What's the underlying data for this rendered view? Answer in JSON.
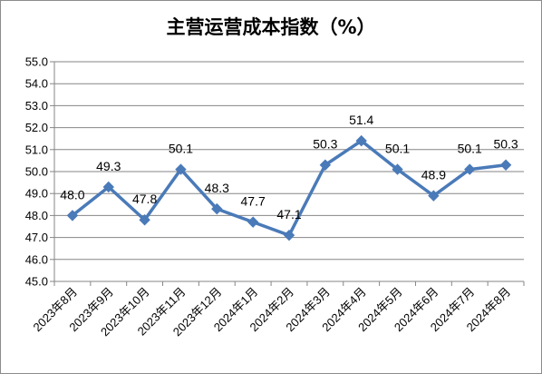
{
  "chart_data": {
    "type": "line",
    "title": "主营运营成本指数（%）",
    "categories": [
      "2023年8月",
      "2023年9月",
      "2023年10月",
      "2023年11月",
      "2023年12月",
      "2024年1月",
      "2024年2月",
      "2024年3月",
      "2024年4月",
      "2024年5月",
      "2024年6月",
      "2024年7月",
      "2024年8月"
    ],
    "series": [
      {
        "values": [
          48.0,
          49.3,
          47.8,
          50.1,
          48.3,
          47.7,
          47.1,
          50.3,
          51.4,
          50.1,
          48.9,
          50.1,
          50.3
        ]
      }
    ],
    "data_labels": [
      "48.0",
      "49.3",
      "47.8",
      "50.1",
      "48.3",
      "47.7",
      "47.1",
      "50.3",
      "51.4",
      "50.1",
      "48.9",
      "50.1",
      "50.3"
    ],
    "ylim": [
      45.0,
      55.0
    ],
    "ytick_labels": [
      "45.0",
      "46.0",
      "47.0",
      "48.0",
      "49.0",
      "50.0",
      "51.0",
      "52.0",
      "53.0",
      "54.0",
      "55.0"
    ],
    "grid": true,
    "legend": "none",
    "series_color": "#4a7ab8",
    "grid_color": "#868686"
  }
}
